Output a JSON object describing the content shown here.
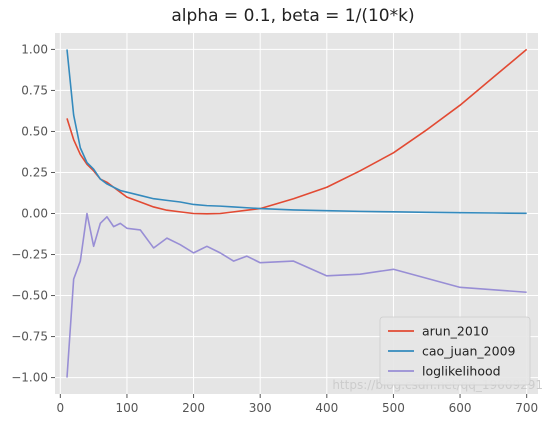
{
  "chart_data": {
    "type": "line",
    "title": "alpha = 0.1, beta = 1/(10*k)",
    "xlabel": "",
    "ylabel": "",
    "xlim": [
      -8,
      717
    ],
    "ylim": [
      -1.1,
      1.1
    ],
    "xticks": [
      0,
      100,
      200,
      300,
      400,
      500,
      600,
      700
    ],
    "yticks": [
      -1.0,
      -0.75,
      -0.5,
      -0.25,
      0.0,
      0.25,
      0.5,
      0.75,
      1.0
    ],
    "ytick_labels": [
      "−1.00",
      "−0.75",
      "−0.50",
      "−0.25",
      "0.00",
      "0.25",
      "0.50",
      "0.75",
      "1.00"
    ],
    "grid": true,
    "legend_position": "lower-right",
    "series": [
      {
        "name": "arun_2010",
        "color": "#e24a33",
        "x": [
          10,
          20,
          30,
          40,
          50,
          60,
          70,
          80,
          90,
          100,
          120,
          140,
          160,
          180,
          200,
          220,
          240,
          260,
          280,
          300,
          350,
          400,
          450,
          500,
          550,
          600,
          650,
          700
        ],
        "y": [
          0.58,
          0.45,
          0.36,
          0.3,
          0.26,
          0.21,
          0.19,
          0.16,
          0.13,
          0.1,
          0.07,
          0.04,
          0.02,
          0.01,
          0.0,
          -0.002,
          0.0,
          0.01,
          0.02,
          0.03,
          0.09,
          0.16,
          0.26,
          0.37,
          0.51,
          0.66,
          0.83,
          1.0
        ]
      },
      {
        "name": "cao_juan_2009",
        "color": "#348abd",
        "x": [
          10,
          20,
          30,
          40,
          50,
          60,
          70,
          80,
          90,
          100,
          120,
          140,
          160,
          180,
          200,
          220,
          240,
          260,
          280,
          300,
          350,
          400,
          450,
          500,
          550,
          600,
          650,
          700
        ],
        "y": [
          1.0,
          0.6,
          0.4,
          0.31,
          0.27,
          0.21,
          0.18,
          0.16,
          0.14,
          0.13,
          0.11,
          0.09,
          0.08,
          0.07,
          0.055,
          0.048,
          0.045,
          0.04,
          0.035,
          0.03,
          0.022,
          0.017,
          0.013,
          0.01,
          0.007,
          0.005,
          0.003,
          0.001
        ]
      },
      {
        "name": "loglikelihood",
        "color": "#988ed5",
        "x": [
          10,
          20,
          30,
          40,
          50,
          60,
          70,
          80,
          90,
          100,
          120,
          140,
          160,
          180,
          200,
          220,
          240,
          260,
          280,
          300,
          350,
          400,
          450,
          500,
          600,
          700
        ],
        "y": [
          -1.0,
          -0.4,
          -0.29,
          0.0,
          -0.2,
          -0.06,
          -0.02,
          -0.08,
          -0.06,
          -0.09,
          -0.1,
          -0.21,
          -0.15,
          -0.19,
          -0.24,
          -0.2,
          -0.24,
          -0.29,
          -0.26,
          -0.3,
          -0.29,
          -0.38,
          -0.37,
          -0.34,
          -0.45,
          -0.48
        ]
      }
    ]
  },
  "watermark": "https://blog.csdn.net/qq_19609291"
}
